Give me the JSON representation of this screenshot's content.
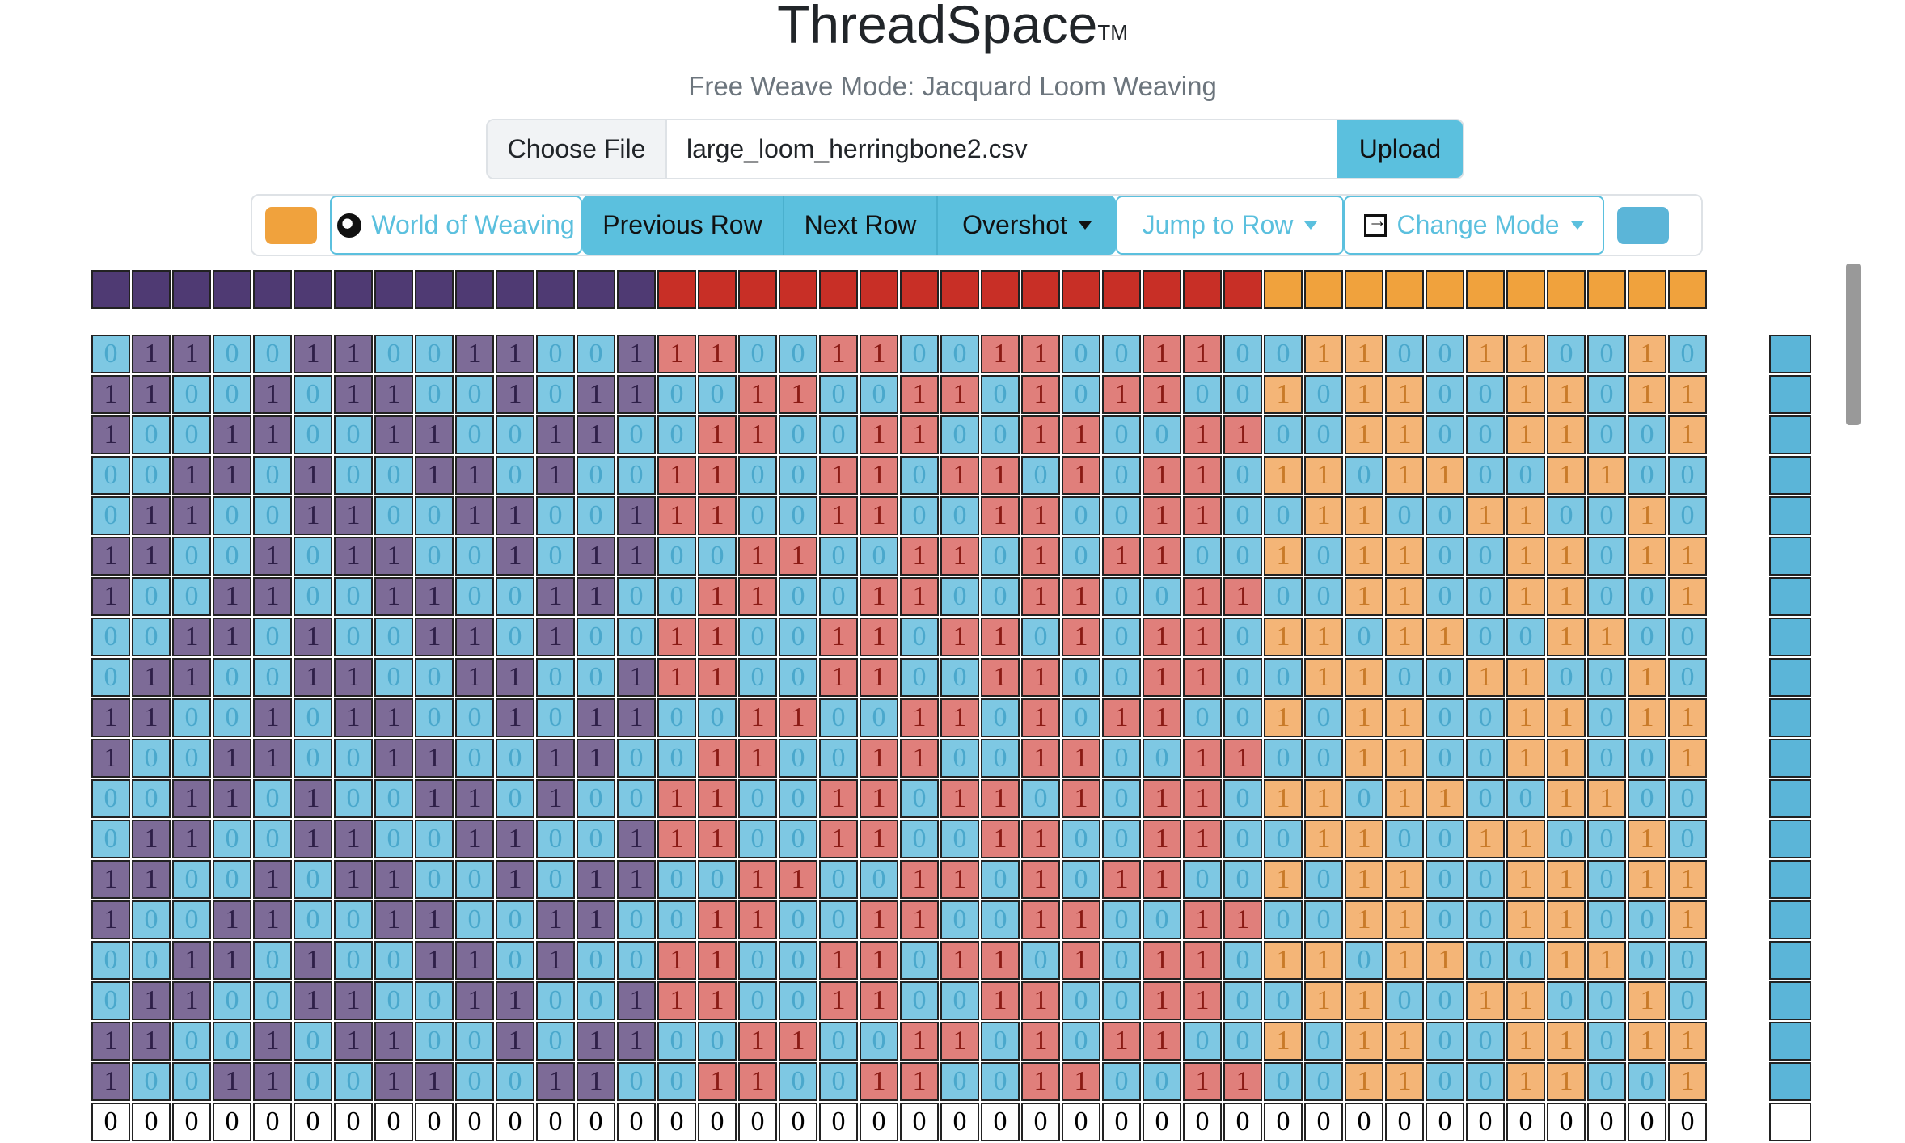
{
  "app": {
    "title": "ThreadSpace",
    "trademark": "TM",
    "subtitle": "Free Weave Mode: Jacquard Loom Weaving"
  },
  "upload": {
    "choose_label": "Choose File",
    "file_name": "large_loom_herringbone2.csv",
    "upload_label": "Upload"
  },
  "toolbar": {
    "left_swatch_color": "#f0a23d",
    "world_label": "World of Weaving",
    "world_icon": "globe-icon",
    "prev_label": "Previous Row",
    "next_label": "Next Row",
    "overshot_label": "Overshot",
    "jump_label": "Jump to Row",
    "change_mode_label": "Change Mode",
    "change_mode_icon": "box-arrow-in-right-icon",
    "right_swatch_color": "#5bb5d8"
  },
  "colors": {
    "purple": "#4f3a73",
    "red": "#c82f26",
    "orange": "#f0a23d",
    "cell_blue": "#7ec8e3",
    "cell_purple": "#7d6b97",
    "cell_red": "#e07f7b",
    "cell_orange": "#f4b577",
    "text_blue": "#4aa8cc",
    "text_purple": "#2e1f48",
    "text_red": "#8a1a14",
    "text_orange": "#c97a28"
  },
  "color_bar": {
    "purple_count": 14,
    "red_count": 15,
    "orange_count": 11
  },
  "grid_rows": [
    "0110011001100111001100110011001100110010",
    "1100101100101100110011010110010110011011",
    "1001100110011001100110011001100110011001",
    "0011010011010011001101101011011011001100",
    "0110011001100111001100110011001100110010",
    "1100101100101100110011010110010110011011",
    "1001100110011001100110011001100110011001",
    "0011010011010011001101101011011011001100",
    "0110011001100111001100110011001100110010",
    "1100101100101100110011010110010110011011",
    "1001100110011001100110011001100110011001",
    "0011010011010011001101101011011011001100",
    "0110011001100111001100110011001100110010",
    "1100101100101100110011010110010110011011",
    "1001100110011001100110011001100110011001",
    "0011010011010011001101101011011011001100",
    "0110011001100111001100110011001100110010",
    "1100101100101100110011010110010110011011",
    "1001100110011001100110011001100110011001"
  ],
  "bottom_row": "0000000000000000000000000000000000000000"
}
